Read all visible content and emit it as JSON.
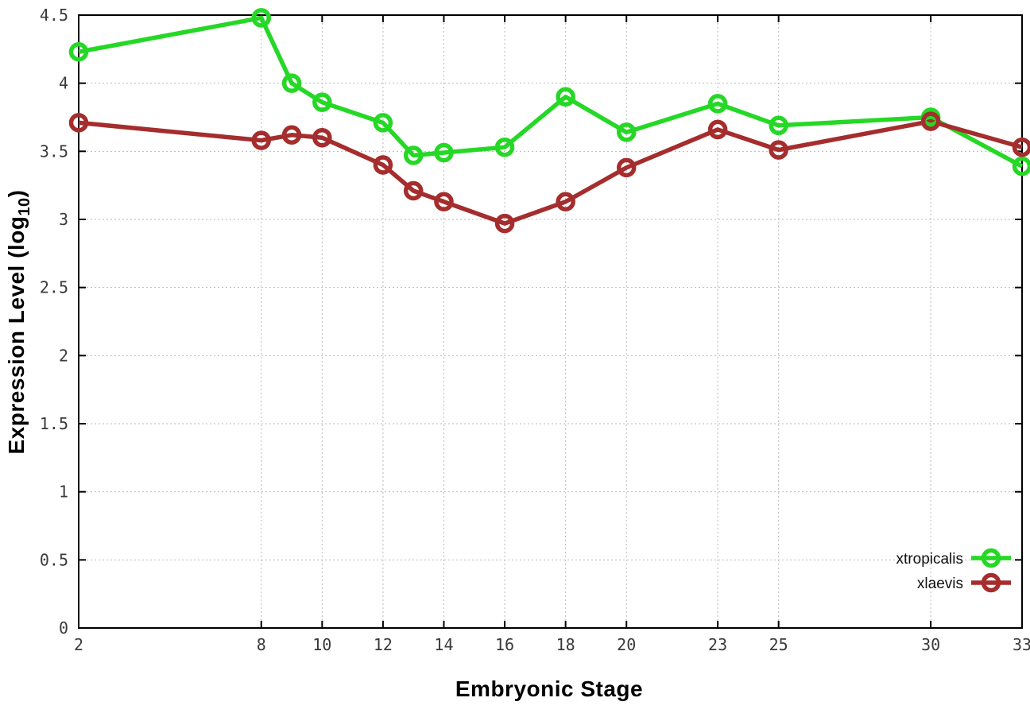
{
  "chart_data": {
    "type": "line",
    "title": "",
    "xlabel": "Embryonic Stage",
    "ylabel": "Expression Level (log10)",
    "ylabel_prefix": "Expression Level (log",
    "ylabel_sub": "10",
    "ylabel_suffix": ")",
    "xlim": [
      2,
      33
    ],
    "ylim": [
      0,
      4.5
    ],
    "x_ticks": [
      2,
      8,
      10,
      12,
      14,
      16,
      18,
      20,
      23,
      25,
      30,
      33
    ],
    "y_ticks": [
      0,
      0.5,
      1,
      1.5,
      2,
      2.5,
      3,
      3.5,
      4,
      4.5
    ],
    "grid": true,
    "legend_position": "bottom-right",
    "x": [
      2,
      8,
      9,
      10,
      12,
      13,
      14,
      16,
      18,
      20,
      23,
      25,
      30,
      33
    ],
    "series": [
      {
        "name": "xtropicalis",
        "color": "#25d825",
        "values": [
          4.23,
          4.48,
          4.0,
          3.86,
          3.71,
          3.47,
          3.49,
          3.53,
          3.9,
          3.64,
          3.85,
          3.69,
          3.75,
          3.39
        ]
      },
      {
        "name": "xlaevis",
        "color": "#a52d2d",
        "values": [
          3.71,
          3.58,
          3.62,
          3.6,
          3.4,
          3.21,
          3.13,
          2.97,
          3.13,
          3.38,
          3.66,
          3.51,
          3.72,
          3.53
        ]
      }
    ]
  }
}
